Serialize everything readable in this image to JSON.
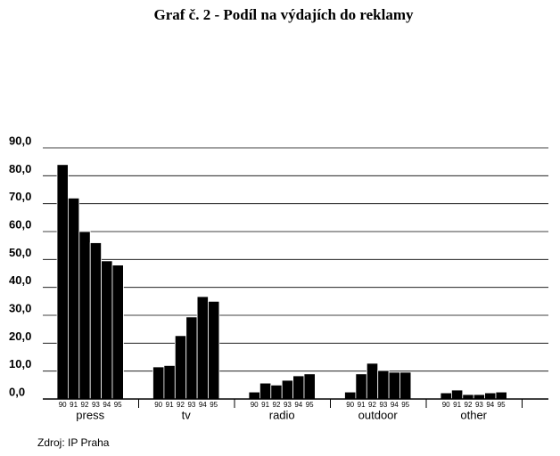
{
  "chart_data": {
    "type": "bar",
    "title": "Graf č. 2 - Podíl na výdajích do reklamy",
    "source": "Zdroj: IP Praha",
    "categories": [
      "press",
      "tv",
      "radio",
      "outdoor",
      "other"
    ],
    "series": [
      {
        "name": "90",
        "color": "#000000",
        "values": [
          84,
          11.5,
          2.5,
          2.5,
          2.2
        ]
      },
      {
        "name": "91",
        "color": "#000000",
        "values": [
          72,
          12,
          5.7,
          9,
          3.2
        ]
      },
      {
        "name": "92",
        "color": "#000000",
        "values": [
          60,
          22.7,
          5,
          12.8,
          1.6
        ]
      },
      {
        "name": "93",
        "color": "#000000",
        "values": [
          56,
          29.4,
          6.7,
          10.2,
          1.6
        ]
      },
      {
        "name": "94",
        "color": "#000000",
        "values": [
          49.5,
          36.7,
          8.3,
          9.6,
          2.2
        ]
      },
      {
        "name": "95",
        "color": "#000000",
        "values": [
          48,
          35,
          9,
          9.6,
          2.5
        ]
      }
    ],
    "ylim": [
      0,
      90
    ],
    "yticks": [
      {
        "value": 0,
        "label": "0,0"
      },
      {
        "value": 10,
        "label": "10,0"
      },
      {
        "value": 20,
        "label": "20,0"
      },
      {
        "value": 30,
        "label": "30,0"
      },
      {
        "value": 40,
        "label": "40,0"
      },
      {
        "value": 50,
        "label": "50,0"
      },
      {
        "value": 60,
        "label": "60,0"
      },
      {
        "value": 70,
        "label": "70,0"
      },
      {
        "value": 80,
        "label": "80,0"
      },
      {
        "value": 90,
        "label": "90,0"
      }
    ],
    "grid": true
  }
}
